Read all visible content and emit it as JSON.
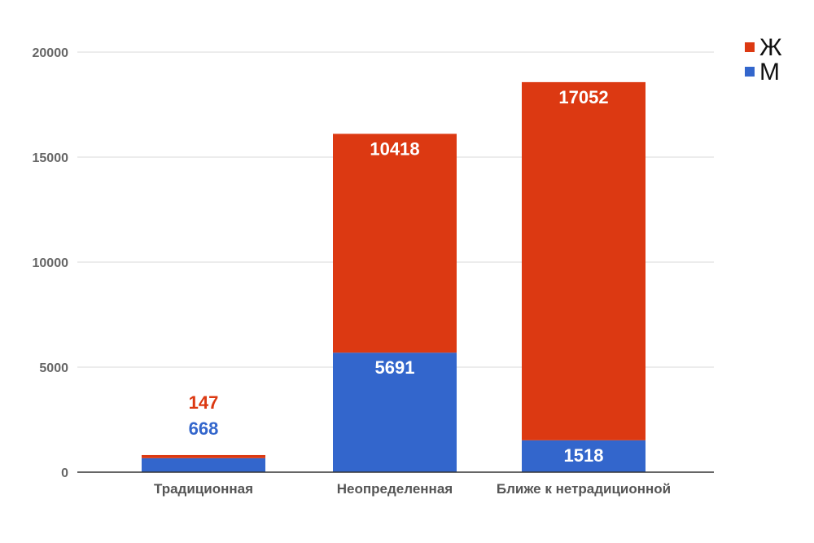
{
  "chart_data": {
    "type": "bar",
    "stacked": true,
    "categories": [
      "Традиционная",
      "Неопределенная",
      "Ближе к нетрадиционной"
    ],
    "series": [
      {
        "name": "М",
        "color": "#3366cc",
        "values": [
          668,
          5691,
          1518
        ]
      },
      {
        "name": "Ж",
        "color": "#dc3912",
        "values": [
          147,
          10418,
          17052
        ]
      }
    ],
    "legend": {
      "position": "top-right",
      "order": [
        "Ж",
        "М"
      ]
    },
    "ylim": [
      0,
      20000
    ],
    "yticks": [
      "0",
      "5000",
      "10000",
      "15000",
      "20000"
    ],
    "grid": true,
    "title": "",
    "xlabel": "",
    "ylabel": ""
  }
}
